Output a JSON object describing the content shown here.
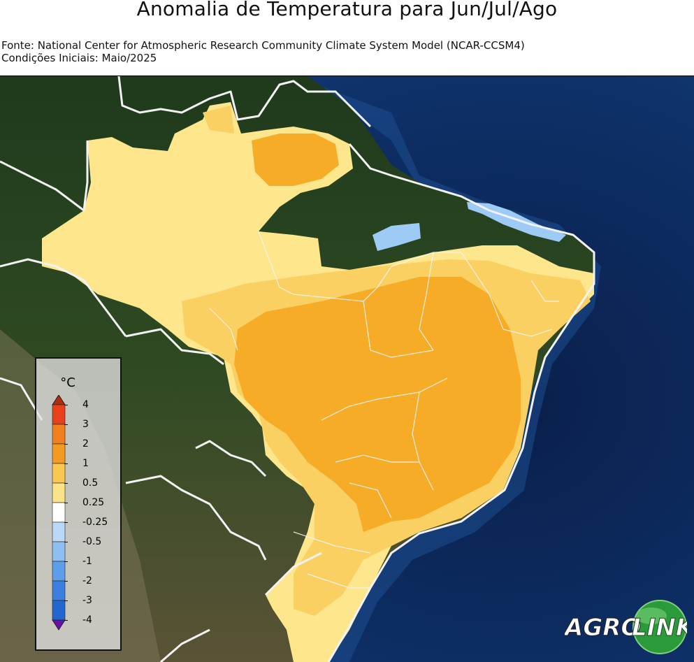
{
  "header": {
    "title": "Anomalia de Temperatura para Jun/Jul/Ago",
    "source_line": "Fonte: National Center for Atmospheric Research Community Climate System Model (NCAR-CCSM4)",
    "initial_conditions_line": "Condições Iniciais: Maio/2025"
  },
  "legend": {
    "unit": "°C",
    "labels": [
      "4",
      "3",
      "2",
      "1",
      "0.5",
      "0.25",
      "-0.25",
      "-0.5",
      "-1",
      "-2",
      "-3",
      "-4"
    ],
    "colors": {
      "above_4": "#b22c0c",
      "3_to_4": "#e8401a",
      "2_to_3": "#f07f1e",
      "1_to_2": "#f39a22",
      "0.5_to_1": "#f9c74f",
      "0.25_to_0.5": "#fbe38a",
      "neutral": "#ffffff",
      "-0.5_to_-0.25": "#b9d9f7",
      "-1_to_-0.5": "#8ebff0",
      "-2_to_-1": "#5d9ee8",
      "-3_to_-2": "#3b7fdf",
      "-4_to_-3": "#2366d0",
      "below_-4": "#6a0fa8"
    }
  },
  "logo": {
    "text_left": "AGRO",
    "text_right": "LINK"
  },
  "map_colors": {
    "ocean": "#0c2a5a",
    "land": "#3b4f2a",
    "anomaly_light": "#fde68c",
    "anomaly_mid": "#fbd062",
    "anomaly_strong": "#f6ac27",
    "negative": "#9ecbf5"
  }
}
